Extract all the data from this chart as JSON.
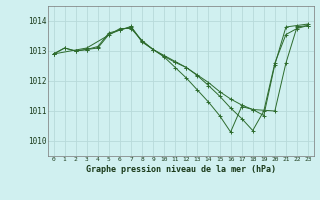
{
  "background_color": "#d0f0f0",
  "grid_color": "#b8dada",
  "line_color": "#2d6b2d",
  "title": "Graphe pression niveau de la mer (hPa)",
  "xlim": [
    -0.5,
    23.5
  ],
  "ylim": [
    1009.5,
    1014.5
  ],
  "yticks": [
    1010,
    1011,
    1012,
    1013,
    1014
  ],
  "xticks": [
    0,
    1,
    2,
    3,
    4,
    5,
    6,
    7,
    8,
    9,
    10,
    11,
    12,
    13,
    14,
    15,
    16,
    17,
    18,
    19,
    20,
    21,
    22,
    23
  ],
  "series": [
    {
      "x": [
        0,
        1,
        2,
        3,
        4,
        5,
        6,
        7,
        8,
        9,
        10,
        11,
        12,
        13,
        14,
        15,
        16,
        17,
        18,
        19,
        20,
        21,
        22,
        23
      ],
      "y": [
        1012.9,
        1013.1,
        1013.0,
        1013.05,
        1013.1,
        1013.55,
        1013.7,
        1013.8,
        1013.3,
        1013.05,
        1012.85,
        1012.65,
        1012.45,
        1012.2,
        1011.95,
        1011.65,
        1011.4,
        1011.2,
        1011.05,
        1010.85,
        1012.55,
        1013.8,
        1013.85,
        1013.9
      ]
    },
    {
      "x": [
        0,
        1,
        2,
        3,
        4,
        5,
        6,
        7,
        8,
        9,
        10,
        11,
        12,
        13,
        14,
        15,
        16,
        17,
        18,
        19,
        20,
        21,
        22,
        23
      ],
      "y": [
        1012.9,
        1013.1,
        1013.0,
        1013.05,
        1013.15,
        1013.6,
        1013.7,
        1013.82,
        1013.32,
        1013.05,
        1012.82,
        1012.62,
        1012.45,
        1012.18,
        1011.85,
        1011.5,
        1011.1,
        1010.75,
        1010.35,
        1011.0,
        1012.6,
        1013.55,
        1013.75,
        1013.85
      ]
    },
    {
      "x": [
        0,
        3,
        6,
        7,
        8,
        9,
        10,
        11,
        12,
        13,
        14,
        15,
        16,
        17,
        18,
        20,
        21,
        22,
        23
      ],
      "y": [
        1012.9,
        1013.1,
        1013.75,
        1013.75,
        1013.35,
        1013.05,
        1012.8,
        1012.45,
        1012.1,
        1011.7,
        1011.3,
        1010.85,
        1010.3,
        1011.15,
        1011.05,
        1011.0,
        1012.6,
        1013.8,
        1013.85
      ]
    }
  ]
}
